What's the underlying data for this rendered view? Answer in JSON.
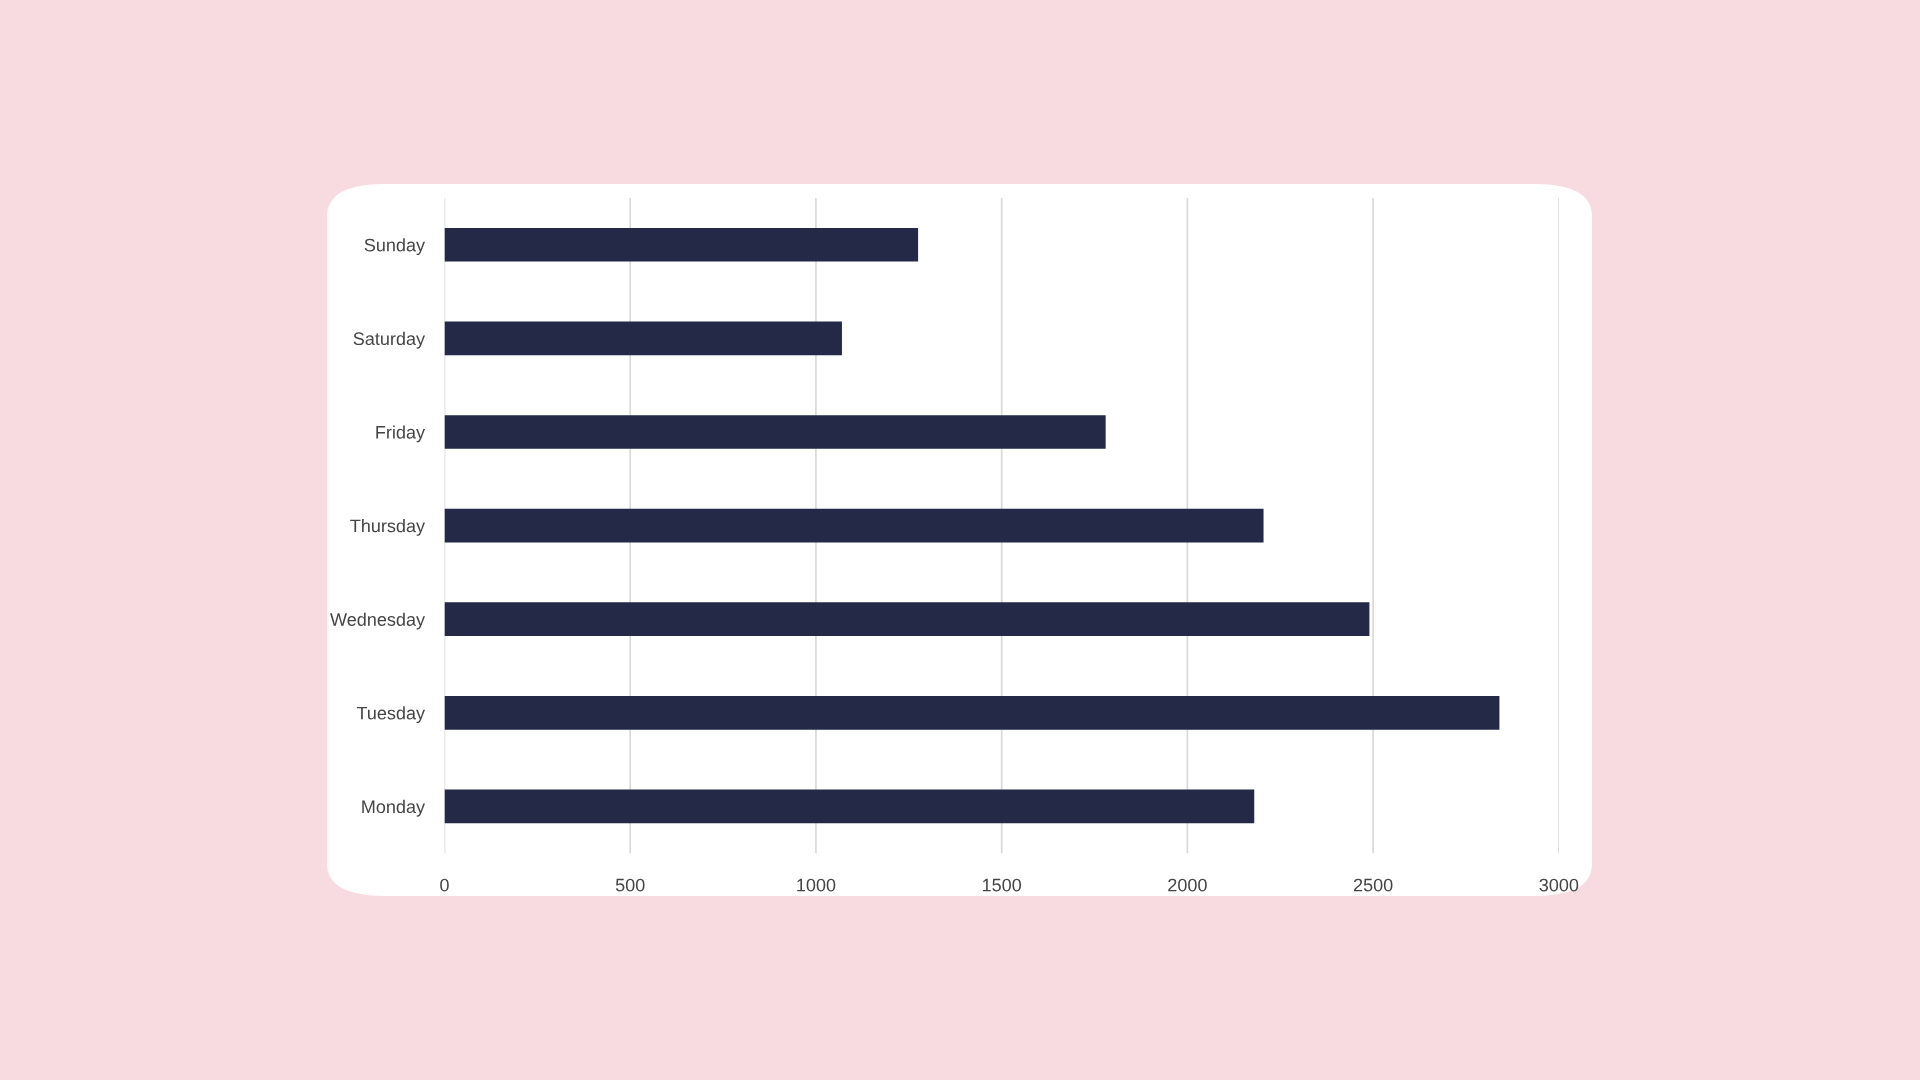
{
  "chart_data": {
    "type": "bar",
    "orientation": "horizontal",
    "categories": [
      "Sunday",
      "Saturday",
      "Friday",
      "Thursday",
      "Wednesday",
      "Tuesday",
      "Monday"
    ],
    "values": [
      1275,
      1070,
      1780,
      2205,
      2490,
      2840,
      2180
    ],
    "color": "#232946",
    "xlim": [
      0,
      3000
    ],
    "xticks": [
      0,
      500,
      1000,
      1500,
      2000,
      2500,
      3000
    ],
    "grid": "x",
    "legend": false
  }
}
